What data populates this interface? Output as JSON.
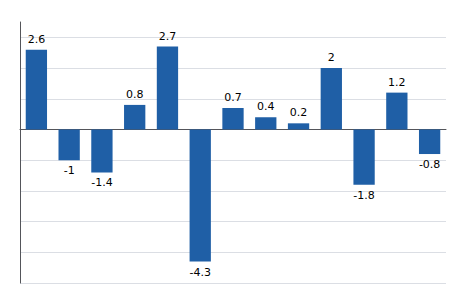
{
  "chart_data": {
    "type": "bar",
    "categories": [
      null,
      null,
      null,
      null,
      null,
      null,
      null,
      null,
      null,
      null,
      null,
      null,
      null
    ],
    "values": [
      2.6,
      -1.0,
      -1.4,
      0.8,
      2.7,
      -4.3,
      0.7,
      0.4,
      0.2,
      2.0,
      -1.8,
      1.2,
      -0.8
    ],
    "color": "#1F5FA6",
    "ylim": [
      -5.0,
      3.5
    ],
    "yticks": [
      -5,
      -4,
      -3,
      -2,
      -1,
      0,
      1,
      2,
      3
    ],
    "grid": true,
    "data_labels": true,
    "tick_labels": false
  }
}
